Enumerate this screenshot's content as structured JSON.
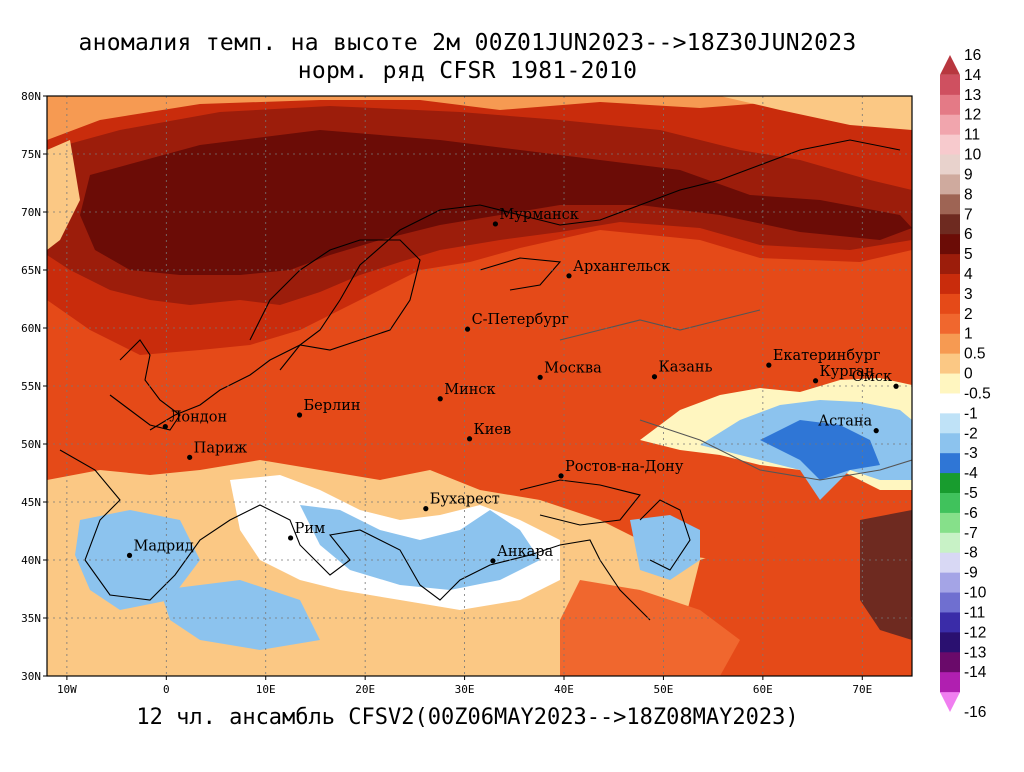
{
  "title": {
    "line1": "аномалия темп. на высоте 2м 00Z01JUN2023-->18Z30JUN2023",
    "line2": "норм. ряд CFSR 1981-2010"
  },
  "footer": "12 чл. ансамбль CFSV2(00Z06MAY2023-->18Z08MAY2023)",
  "map": {
    "lon_range": [
      -12,
      75
    ],
    "lat_range": [
      30,
      80
    ],
    "lon_ticks": [
      {
        "value": -10,
        "label": "10W"
      },
      {
        "value": 0,
        "label": "0"
      },
      {
        "value": 10,
        "label": "10E"
      },
      {
        "value": 20,
        "label": "20E"
      },
      {
        "value": 30,
        "label": "30E"
      },
      {
        "value": 40,
        "label": "40E"
      },
      {
        "value": 50,
        "label": "50E"
      },
      {
        "value": 60,
        "label": "60E"
      },
      {
        "value": 70,
        "label": "70E"
      }
    ],
    "lat_ticks": [
      {
        "value": 30,
        "label": "30N"
      },
      {
        "value": 35,
        "label": "35N"
      },
      {
        "value": 40,
        "label": "40N"
      },
      {
        "value": 45,
        "label": "45N"
      },
      {
        "value": 50,
        "label": "50N"
      },
      {
        "value": 55,
        "label": "55N"
      },
      {
        "value": 60,
        "label": "60N"
      },
      {
        "value": 65,
        "label": "65N"
      },
      {
        "value": 70,
        "label": "70N"
      },
      {
        "value": 75,
        "label": "75N"
      },
      {
        "value": 80,
        "label": "80N"
      }
    ],
    "cities": [
      {
        "name": "Мурманск",
        "lon": 33.1,
        "lat": 68.97
      },
      {
        "name": "Архангельск",
        "lon": 40.5,
        "lat": 64.5
      },
      {
        "name": "С-Петербург",
        "lon": 30.3,
        "lat": 59.9
      },
      {
        "name": "Москва",
        "lon": 37.6,
        "lat": 55.75
      },
      {
        "name": "Казань",
        "lon": 49.1,
        "lat": 55.8
      },
      {
        "name": "Екатеринбург",
        "lon": 60.6,
        "lat": 56.8
      },
      {
        "name": "Курган",
        "lon": 65.3,
        "lat": 55.45
      },
      {
        "name": "Омск",
        "lon": 73.4,
        "lat": 54.98
      },
      {
        "name": "Астана",
        "lon": 71.4,
        "lat": 51.15
      },
      {
        "name": "Лондон",
        "lon": -0.1,
        "lat": 51.5
      },
      {
        "name": "Париж",
        "lon": 2.35,
        "lat": 48.85
      },
      {
        "name": "Берлин",
        "lon": 13.4,
        "lat": 52.5
      },
      {
        "name": "Минск",
        "lon": 27.55,
        "lat": 53.9
      },
      {
        "name": "Киев",
        "lon": 30.5,
        "lat": 50.45
      },
      {
        "name": "Ростов-на-Дону",
        "lon": 39.7,
        "lat": 47.25
      },
      {
        "name": "Бухарест",
        "lon": 26.1,
        "lat": 44.43
      },
      {
        "name": "Мадрид",
        "lon": -3.7,
        "lat": 40.4
      },
      {
        "name": "Рим",
        "lon": 12.5,
        "lat": 41.9
      },
      {
        "name": "Анкара",
        "lon": 32.85,
        "lat": 39.93
      }
    ]
  },
  "colorbar": {
    "levels": [
      {
        "label": "16",
        "color": "#b8373f"
      },
      {
        "label": "14",
        "color": "#cf5060"
      },
      {
        "label": "13",
        "color": "#e47a86"
      },
      {
        "label": "12",
        "color": "#f1a5ad"
      },
      {
        "label": "11",
        "color": "#f7cacd"
      },
      {
        "label": "10",
        "color": "#e8d2cc"
      },
      {
        "label": "9",
        "color": "#cfaa9e"
      },
      {
        "label": "8",
        "color": "#9e6454"
      },
      {
        "label": "7",
        "color": "#6e2a20"
      },
      {
        "label": "6",
        "color": "#6b0c06"
      },
      {
        "label": "5",
        "color": "#9c1d0b"
      },
      {
        "label": "4",
        "color": "#c92c0c"
      },
      {
        "label": "3",
        "color": "#e54a18"
      },
      {
        "label": "2",
        "color": "#f0672e"
      },
      {
        "label": "1",
        "color": "#f69a52"
      },
      {
        "label": "0.5",
        "color": "#fbc884"
      },
      {
        "label": "0",
        "color": "#fff6c0"
      },
      {
        "label": "-0.5",
        "color": "#ffffff"
      },
      {
        "label": "-1",
        "color": "#bfe2f7"
      },
      {
        "label": "-2",
        "color": "#8cc3ee"
      },
      {
        "label": "-3",
        "color": "#2f76d6"
      },
      {
        "label": "-4",
        "color": "#189c2e"
      },
      {
        "label": "-5",
        "color": "#40c25c"
      },
      {
        "label": "-6",
        "color": "#86e08a"
      },
      {
        "label": "-7",
        "color": "#c8f2c6"
      },
      {
        "label": "-8",
        "color": "#d8d8f4"
      },
      {
        "label": "-9",
        "color": "#a4a4e6"
      },
      {
        "label": "-10",
        "color": "#6f6fd0"
      },
      {
        "label": "-11",
        "color": "#3a2ca8"
      },
      {
        "label": "-12",
        "color": "#2a1070"
      },
      {
        "label": "-13",
        "color": "#6a0a6a"
      },
      {
        "label": "-14",
        "color": "#b01fb0"
      },
      {
        "label": "-16",
        "color": "#f07ef0"
      }
    ]
  }
}
